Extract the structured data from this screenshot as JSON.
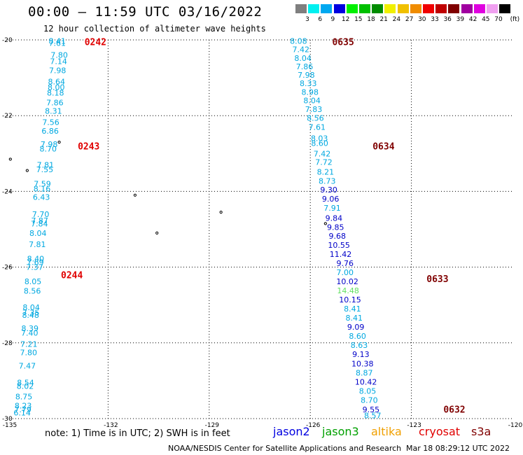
{
  "title": "00:00 – 11:59 UTC 03/16/2022",
  "subtitle": "12 hour collection of altimeter wave heights",
  "legend": {
    "unit": "(ft)",
    "bins": [
      {
        "label": "3",
        "color": "#7f7f7f"
      },
      {
        "label": "6",
        "color": "#00f0f0"
      },
      {
        "label": "9",
        "color": "#00a8f0"
      },
      {
        "label": "12",
        "color": "#0000e0"
      },
      {
        "label": "15",
        "color": "#00f000"
      },
      {
        "label": "18",
        "color": "#00c000"
      },
      {
        "label": "21",
        "color": "#008c00"
      },
      {
        "label": "24",
        "color": "#f0f000"
      },
      {
        "label": "27",
        "color": "#f0c000"
      },
      {
        "label": "30",
        "color": "#f08c00"
      },
      {
        "label": "33",
        "color": "#f00000"
      },
      {
        "label": "36",
        "color": "#c00000"
      },
      {
        "label": "39",
        "color": "#800000"
      },
      {
        "label": "42",
        "color": "#a000a0"
      },
      {
        "label": "45",
        "color": "#e000e0"
      },
      {
        "label": "70",
        "color": "#f0a0f0"
      },
      {
        "label": "",
        "color": "#000000"
      }
    ]
  },
  "map": {
    "lon_range": [
      -135,
      -120
    ],
    "lat_range": [
      -30,
      -20
    ],
    "lon_ticks": [
      "-135",
      "-132",
      "-129",
      "-126",
      "-123",
      "-120"
    ],
    "lat_ticks": [
      "-20",
      "-22",
      "-24",
      "-26",
      "-28",
      "-30"
    ],
    "colors": {
      "cyan": "#00a8e0",
      "blue": "#0000c8",
      "green": "#60e060",
      "red": "#e00000",
      "maroon": "#800000"
    },
    "islands": [
      {
        "lon": -134.9,
        "lat": -23.15
      },
      {
        "lon": -134.4,
        "lat": -23.45
      },
      {
        "lon": -133.45,
        "lat": -22.7
      },
      {
        "lon": -131.2,
        "lat": -24.1
      },
      {
        "lon": -130.55,
        "lat": -25.1
      },
      {
        "lon": -128.65,
        "lat": -24.55
      },
      {
        "lon": -125.55,
        "lat": -24.85
      }
    ],
    "pass_times": [
      {
        "text": "0242",
        "lon": -132.7,
        "lat": -20.05,
        "color": "#e00000"
      },
      {
        "text": "0243",
        "lon": -132.9,
        "lat": -22.8,
        "color": "#e00000"
      },
      {
        "text": "0244",
        "lon": -133.4,
        "lat": -26.2,
        "color": "#e00000"
      },
      {
        "text": "0635",
        "lon": -125.35,
        "lat": -20.05,
        "color": "#800000"
      },
      {
        "text": "0634",
        "lon": -124.15,
        "lat": -22.8,
        "color": "#800000"
      },
      {
        "text": "0633",
        "lon": -122.55,
        "lat": -26.3,
        "color": "#800000"
      },
      {
        "text": "0632",
        "lon": -122.05,
        "lat": -29.75,
        "color": "#800000"
      }
    ],
    "tracks": [
      {
        "name": "west",
        "points": [
          {
            "v": "8.41",
            "lon": -133.51,
            "lat": -20.03,
            "c": "cyan"
          },
          {
            "v": "7.61",
            "lon": -133.51,
            "lat": -20.08,
            "c": "cyan"
          },
          {
            "v": "7.80",
            "lon": -133.45,
            "lat": -20.4,
            "c": "cyan"
          },
          {
            "v": "7.14",
            "lon": -133.47,
            "lat": -20.56,
            "c": "cyan"
          },
          {
            "v": "7.98",
            "lon": -133.5,
            "lat": -20.8,
            "c": "cyan"
          },
          {
            "v": "8.64",
            "lon": -133.53,
            "lat": -21.1,
            "c": "cyan"
          },
          {
            "v": "8.00",
            "lon": -133.54,
            "lat": -21.25,
            "c": "cyan"
          },
          {
            "v": "8.18",
            "lon": -133.56,
            "lat": -21.4,
            "c": "cyan"
          },
          {
            "v": "7.86",
            "lon": -133.58,
            "lat": -21.65,
            "c": "cyan"
          },
          {
            "v": "8.31",
            "lon": -133.62,
            "lat": -21.88,
            "c": "cyan"
          },
          {
            "v": "7.56",
            "lon": -133.7,
            "lat": -22.17,
            "c": "cyan"
          },
          {
            "v": "6.86",
            "lon": -133.72,
            "lat": -22.4,
            "c": "cyan"
          },
          {
            "v": "7.98",
            "lon": -133.75,
            "lat": -22.75,
            "c": "cyan"
          },
          {
            "v": "8.70",
            "lon": -133.78,
            "lat": -22.87,
            "c": "cyan"
          },
          {
            "v": "7.81",
            "lon": -133.86,
            "lat": -23.3,
            "c": "cyan"
          },
          {
            "v": "7.55",
            "lon": -133.88,
            "lat": -23.42,
            "c": "cyan"
          },
          {
            "v": "7.59",
            "lon": -133.95,
            "lat": -23.8,
            "c": "cyan"
          },
          {
            "v": "8.16",
            "lon": -133.96,
            "lat": -23.93,
            "c": "cyan"
          },
          {
            "v": "6.43",
            "lon": -133.98,
            "lat": -24.15,
            "c": "cyan"
          },
          {
            "v": "7.70",
            "lon": -134.0,
            "lat": -24.6,
            "c": "cyan"
          },
          {
            "v": "7.87",
            "lon": -134.03,
            "lat": -24.77,
            "c": "cyan"
          },
          {
            "v": "7.84",
            "lon": -134.04,
            "lat": -24.85,
            "c": "cyan"
          },
          {
            "v": "8.04",
            "lon": -134.08,
            "lat": -25.1,
            "c": "cyan"
          },
          {
            "v": "7.81",
            "lon": -134.1,
            "lat": -25.4,
            "c": "cyan"
          },
          {
            "v": "8.40",
            "lon": -134.15,
            "lat": -25.78,
            "c": "cyan"
          },
          {
            "v": "7.69",
            "lon": -134.16,
            "lat": -25.87,
            "c": "cyan"
          },
          {
            "v": "7.37",
            "lon": -134.18,
            "lat": -26.0,
            "c": "cyan"
          },
          {
            "v": "8.05",
            "lon": -134.23,
            "lat": -26.38,
            "c": "cyan"
          },
          {
            "v": "8.56",
            "lon": -134.25,
            "lat": -26.63,
            "c": "cyan"
          },
          {
            "v": "8.04",
            "lon": -134.28,
            "lat": -27.06,
            "c": "cyan"
          },
          {
            "v": "7.35",
            "lon": -134.29,
            "lat": -27.2,
            "c": "cyan"
          },
          {
            "v": "8.48",
            "lon": -134.3,
            "lat": -27.26,
            "c": "cyan"
          },
          {
            "v": "8.39",
            "lon": -134.32,
            "lat": -27.62,
            "c": "cyan"
          },
          {
            "v": "7.40",
            "lon": -134.33,
            "lat": -27.74,
            "c": "cyan"
          },
          {
            "v": "7.21",
            "lon": -134.35,
            "lat": -28.03,
            "c": "cyan"
          },
          {
            "v": "7.80",
            "lon": -134.36,
            "lat": -28.25,
            "c": "cyan"
          },
          {
            "v": "7.47",
            "lon": -134.4,
            "lat": -28.6,
            "c": "cyan"
          },
          {
            "v": "8.54",
            "lon": -134.45,
            "lat": -29.05,
            "c": "cyan"
          },
          {
            "v": "8.02",
            "lon": -134.46,
            "lat": -29.14,
            "c": "cyan"
          },
          {
            "v": "8.75",
            "lon": -134.5,
            "lat": -29.42,
            "c": "cyan"
          },
          {
            "v": "8.23",
            "lon": -134.52,
            "lat": -29.66,
            "c": "cyan"
          },
          {
            "v": "7.79",
            "lon": -134.53,
            "lat": -29.76,
            "c": "cyan"
          },
          {
            "v": "6.14",
            "lon": -134.55,
            "lat": -29.84,
            "c": "cyan"
          }
        ]
      },
      {
        "name": "east",
        "points": [
          {
            "v": "8.08",
            "lon": -126.35,
            "lat": -20.03,
            "c": "cyan"
          },
          {
            "v": "7.42",
            "lon": -126.28,
            "lat": -20.25,
            "c": "cyan"
          },
          {
            "v": "8.04",
            "lon": -126.22,
            "lat": -20.48,
            "c": "cyan"
          },
          {
            "v": "7.86",
            "lon": -126.17,
            "lat": -20.7,
            "c": "cyan"
          },
          {
            "v": "7.98",
            "lon": -126.12,
            "lat": -20.92,
            "c": "cyan"
          },
          {
            "v": "8.33",
            "lon": -126.06,
            "lat": -21.15,
            "c": "cyan"
          },
          {
            "v": "8.98",
            "lon": -126.01,
            "lat": -21.38,
            "c": "cyan"
          },
          {
            "v": "8.04",
            "lon": -125.95,
            "lat": -21.6,
            "c": "cyan"
          },
          {
            "v": "7.83",
            "lon": -125.9,
            "lat": -21.83,
            "c": "cyan"
          },
          {
            "v": "8.56",
            "lon": -125.85,
            "lat": -22.06,
            "c": "cyan"
          },
          {
            "v": "7.61",
            "lon": -125.8,
            "lat": -22.3,
            "c": "cyan"
          },
          {
            "v": "8.03",
            "lon": -125.73,
            "lat": -22.6,
            "c": "cyan"
          },
          {
            "v": "8.60",
            "lon": -125.72,
            "lat": -22.73,
            "c": "cyan"
          },
          {
            "v": "7.42",
            "lon": -125.65,
            "lat": -23.0,
            "c": "cyan"
          },
          {
            "v": "7.72",
            "lon": -125.6,
            "lat": -23.23,
            "c": "cyan"
          },
          {
            "v": "8.21",
            "lon": -125.55,
            "lat": -23.48,
            "c": "cyan"
          },
          {
            "v": "8.73",
            "lon": -125.5,
            "lat": -23.72,
            "c": "cyan"
          },
          {
            "v": "9.30",
            "lon": -125.45,
            "lat": -23.96,
            "c": "blue"
          },
          {
            "v": "9.06",
            "lon": -125.4,
            "lat": -24.2,
            "c": "blue"
          },
          {
            "v": "7.91",
            "lon": -125.35,
            "lat": -24.44,
            "c": "cyan"
          },
          {
            "v": "9.84",
            "lon": -125.3,
            "lat": -24.7,
            "c": "blue"
          },
          {
            "v": "9.85",
            "lon": -125.25,
            "lat": -24.94,
            "c": "blue"
          },
          {
            "v": "9.68",
            "lon": -125.2,
            "lat": -25.18,
            "c": "blue"
          },
          {
            "v": "10.55",
            "lon": -125.15,
            "lat": -25.42,
            "c": "blue"
          },
          {
            "v": "11.42",
            "lon": -125.1,
            "lat": -25.66,
            "c": "blue"
          },
          {
            "v": "9.76",
            "lon": -124.97,
            "lat": -25.9,
            "c": "blue"
          },
          {
            "v": "7.00",
            "lon": -124.97,
            "lat": -26.14,
            "c": "cyan"
          },
          {
            "v": "10.02",
            "lon": -124.9,
            "lat": -26.38,
            "c": "blue"
          },
          {
            "v": "14.48",
            "lon": -124.88,
            "lat": -26.62,
            "c": "green"
          },
          {
            "v": "10.15",
            "lon": -124.82,
            "lat": -26.86,
            "c": "blue"
          },
          {
            "v": "8.41",
            "lon": -124.75,
            "lat": -27.1,
            "c": "cyan"
          },
          {
            "v": "8.41",
            "lon": -124.7,
            "lat": -27.34,
            "c": "cyan"
          },
          {
            "v": "9.09",
            "lon": -124.65,
            "lat": -27.58,
            "c": "blue"
          },
          {
            "v": "8.60",
            "lon": -124.6,
            "lat": -27.82,
            "c": "cyan"
          },
          {
            "v": "8.63",
            "lon": -124.55,
            "lat": -28.06,
            "c": "cyan"
          },
          {
            "v": "9.13",
            "lon": -124.5,
            "lat": -28.3,
            "c": "blue"
          },
          {
            "v": "10.38",
            "lon": -124.45,
            "lat": -28.55,
            "c": "blue"
          },
          {
            "v": "8.87",
            "lon": -124.4,
            "lat": -28.79,
            "c": "cyan"
          },
          {
            "v": "10.42",
            "lon": -124.35,
            "lat": -29.03,
            "c": "blue"
          },
          {
            "v": "8.05",
            "lon": -124.3,
            "lat": -29.27,
            "c": "cyan"
          },
          {
            "v": "8.70",
            "lon": -124.25,
            "lat": -29.51,
            "c": "cyan"
          },
          {
            "v": "9.55",
            "lon": -124.2,
            "lat": -29.76,
            "c": "blue"
          },
          {
            "v": "8.57",
            "lon": -124.15,
            "lat": -29.92,
            "c": "cyan"
          }
        ]
      }
    ]
  },
  "footer": {
    "note": "note:  1) Time is in UTC;  2) SWH is in feet",
    "satellites": [
      {
        "name": "jason2",
        "color": "#0000e0"
      },
      {
        "name": "jason3",
        "color": "#00a000"
      },
      {
        "name": "altika",
        "color": "#f0a000"
      },
      {
        "name": "cryosat",
        "color": "#e00000"
      },
      {
        "name": "s3a",
        "color": "#800000"
      }
    ],
    "credit": "NOAA/NESDIS Center for Satellite Applications and Research",
    "generated": "Mar 18 08:29:12 UTC 2022"
  }
}
